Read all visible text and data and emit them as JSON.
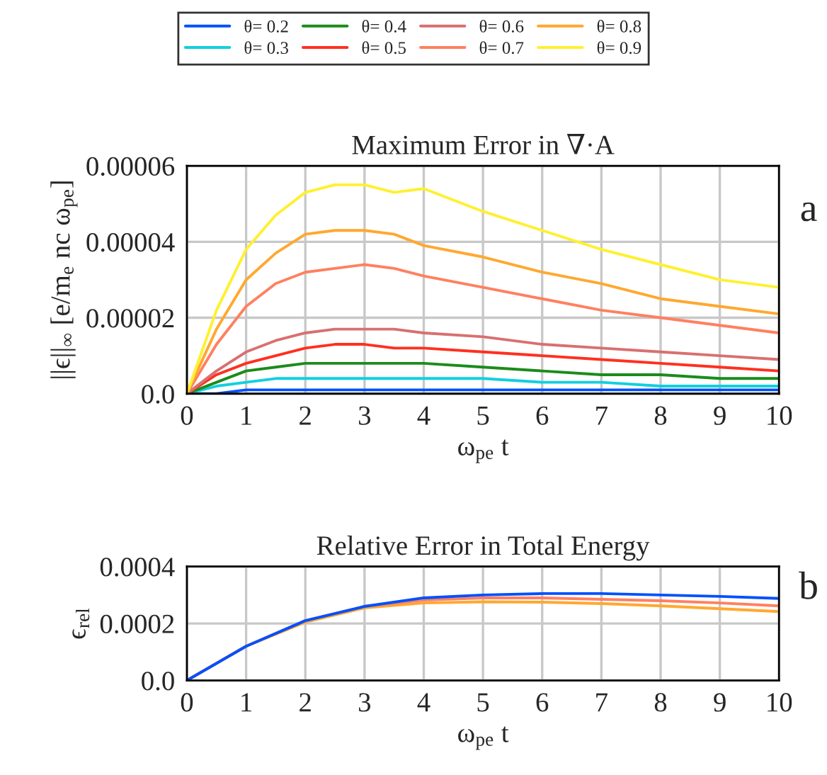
{
  "chart_data": [
    {
      "type": "line",
      "title": "Maximum Error in ∇·A",
      "xlabel": "ω$_{pe}$ t",
      "ylabel": "||ϵ||$_{∞}$ [e/m$_{e}$ nc ω$_{pe}$]",
      "annotations": [
        "a"
      ],
      "x": [
        0,
        0.5,
        1,
        1.5,
        2,
        2.5,
        3,
        3.5,
        4,
        5,
        6,
        7,
        8,
        9,
        10
      ],
      "series": [
        {
          "name": "θ= 0.2",
          "color": "#0050ff",
          "values": [
            0,
            0,
            1e-06,
            1e-06,
            1e-06,
            1e-06,
            1e-06,
            1e-06,
            1e-06,
            1e-06,
            1e-06,
            1e-06,
            1e-06,
            1e-06,
            1e-06
          ]
        },
        {
          "name": "θ= 0.3",
          "color": "#10d0e0",
          "values": [
            0,
            2e-06,
            3e-06,
            4e-06,
            4e-06,
            4e-06,
            4e-06,
            4e-06,
            4e-06,
            4e-06,
            3e-06,
            3e-06,
            2e-06,
            2e-06,
            2e-06
          ]
        },
        {
          "name": "θ= 0.4",
          "color": "#1a8c1a",
          "values": [
            0,
            3e-06,
            6e-06,
            7e-06,
            8e-06,
            8e-06,
            8e-06,
            8e-06,
            8e-06,
            7e-06,
            6e-06,
            5e-06,
            5e-06,
            4e-06,
            4e-06
          ]
        },
        {
          "name": "θ= 0.5",
          "color": "#ff3020",
          "values": [
            0,
            5e-06,
            8e-06,
            1e-05,
            1.2e-05,
            1.3e-05,
            1.3e-05,
            1.2e-05,
            1.2e-05,
            1.1e-05,
            1e-05,
            9e-06,
            8e-06,
            7e-06,
            6e-06
          ]
        },
        {
          "name": "θ= 0.6",
          "color": "#d87070",
          "values": [
            0,
            6e-06,
            1.1e-05,
            1.4e-05,
            1.6e-05,
            1.7e-05,
            1.7e-05,
            1.7e-05,
            1.6e-05,
            1.5e-05,
            1.3e-05,
            1.2e-05,
            1.1e-05,
            1e-05,
            9e-06
          ]
        },
        {
          "name": "θ= 0.7",
          "color": "#ff8060",
          "values": [
            0,
            1.3e-05,
            2.3e-05,
            2.9e-05,
            3.2e-05,
            3.3e-05,
            3.4e-05,
            3.3e-05,
            3.1e-05,
            2.8e-05,
            2.5e-05,
            2.2e-05,
            2e-05,
            1.8e-05,
            1.6e-05
          ]
        },
        {
          "name": "θ= 0.8",
          "color": "#ffa830",
          "values": [
            0,
            1.7e-05,
            3e-05,
            3.7e-05,
            4.2e-05,
            4.3e-05,
            4.3e-05,
            4.2e-05,
            3.9e-05,
            3.6e-05,
            3.2e-05,
            2.9e-05,
            2.5e-05,
            2.3e-05,
            2.1e-05
          ]
        },
        {
          "name": "θ= 0.9",
          "color": "#fff030",
          "values": [
            0,
            2.2e-05,
            3.8e-05,
            4.7e-05,
            5.3e-05,
            5.5e-05,
            5.5e-05,
            5.3e-05,
            5.4e-05,
            4.8e-05,
            4.3e-05,
            3.8e-05,
            3.4e-05,
            3e-05,
            2.8e-05
          ]
        }
      ],
      "xlim": [
        0,
        10
      ],
      "xticks": [
        0,
        1,
        2,
        3,
        4,
        5,
        6,
        7,
        8,
        9,
        10
      ],
      "ylim": [
        0,
        6e-05
      ],
      "yticks": [
        {
          "value": 0,
          "label": "0.0"
        },
        {
          "value": 2e-05,
          "label": "0.00002"
        },
        {
          "value": 4e-05,
          "label": "0.00004"
        },
        {
          "value": 6e-05,
          "label": "0.00006"
        }
      ],
      "grid": true,
      "legend": "top",
      "marker": "none",
      "line_style": "solid"
    },
    {
      "type": "line",
      "title": "Relative Error in Total Energy",
      "xlabel": "ω$_{pe}$ t",
      "ylabel": "ϵ$_{rel}$",
      "annotations": [
        "b"
      ],
      "x": [
        0,
        1,
        2,
        3,
        4,
        5,
        6,
        7,
        8,
        9,
        10
      ],
      "series": [
        {
          "color": "#ffa830",
          "values": [
            0,
            0.00012,
            0.000205,
            0.000255,
            0.000272,
            0.000276,
            0.000275,
            0.00027,
            0.000262,
            0.000252,
            0.000242
          ]
        },
        {
          "color": "#ff8060",
          "values": [
            0,
            0.00012,
            0.00021,
            0.00026,
            0.000282,
            0.00029,
            0.00029,
            0.000285,
            0.00028,
            0.000272,
            0.000262
          ]
        },
        {
          "color": "#0050ff",
          "values": [
            0,
            0.00012,
            0.00021,
            0.00026,
            0.00029,
            0.0003,
            0.000305,
            0.000305,
            0.0003,
            0.000295,
            0.000288
          ]
        }
      ],
      "xlim": [
        0,
        10
      ],
      "xticks": [
        0,
        1,
        2,
        3,
        4,
        5,
        6,
        7,
        8,
        9,
        10
      ],
      "ylim": [
        0,
        0.0004
      ],
      "yticks": [
        {
          "value": 0,
          "label": "0.0"
        },
        {
          "value": 0.0002,
          "label": "0.0002"
        },
        {
          "value": 0.0004,
          "label": "0.0004"
        }
      ],
      "grid": true,
      "marker": "none",
      "line_style": "solid"
    }
  ]
}
